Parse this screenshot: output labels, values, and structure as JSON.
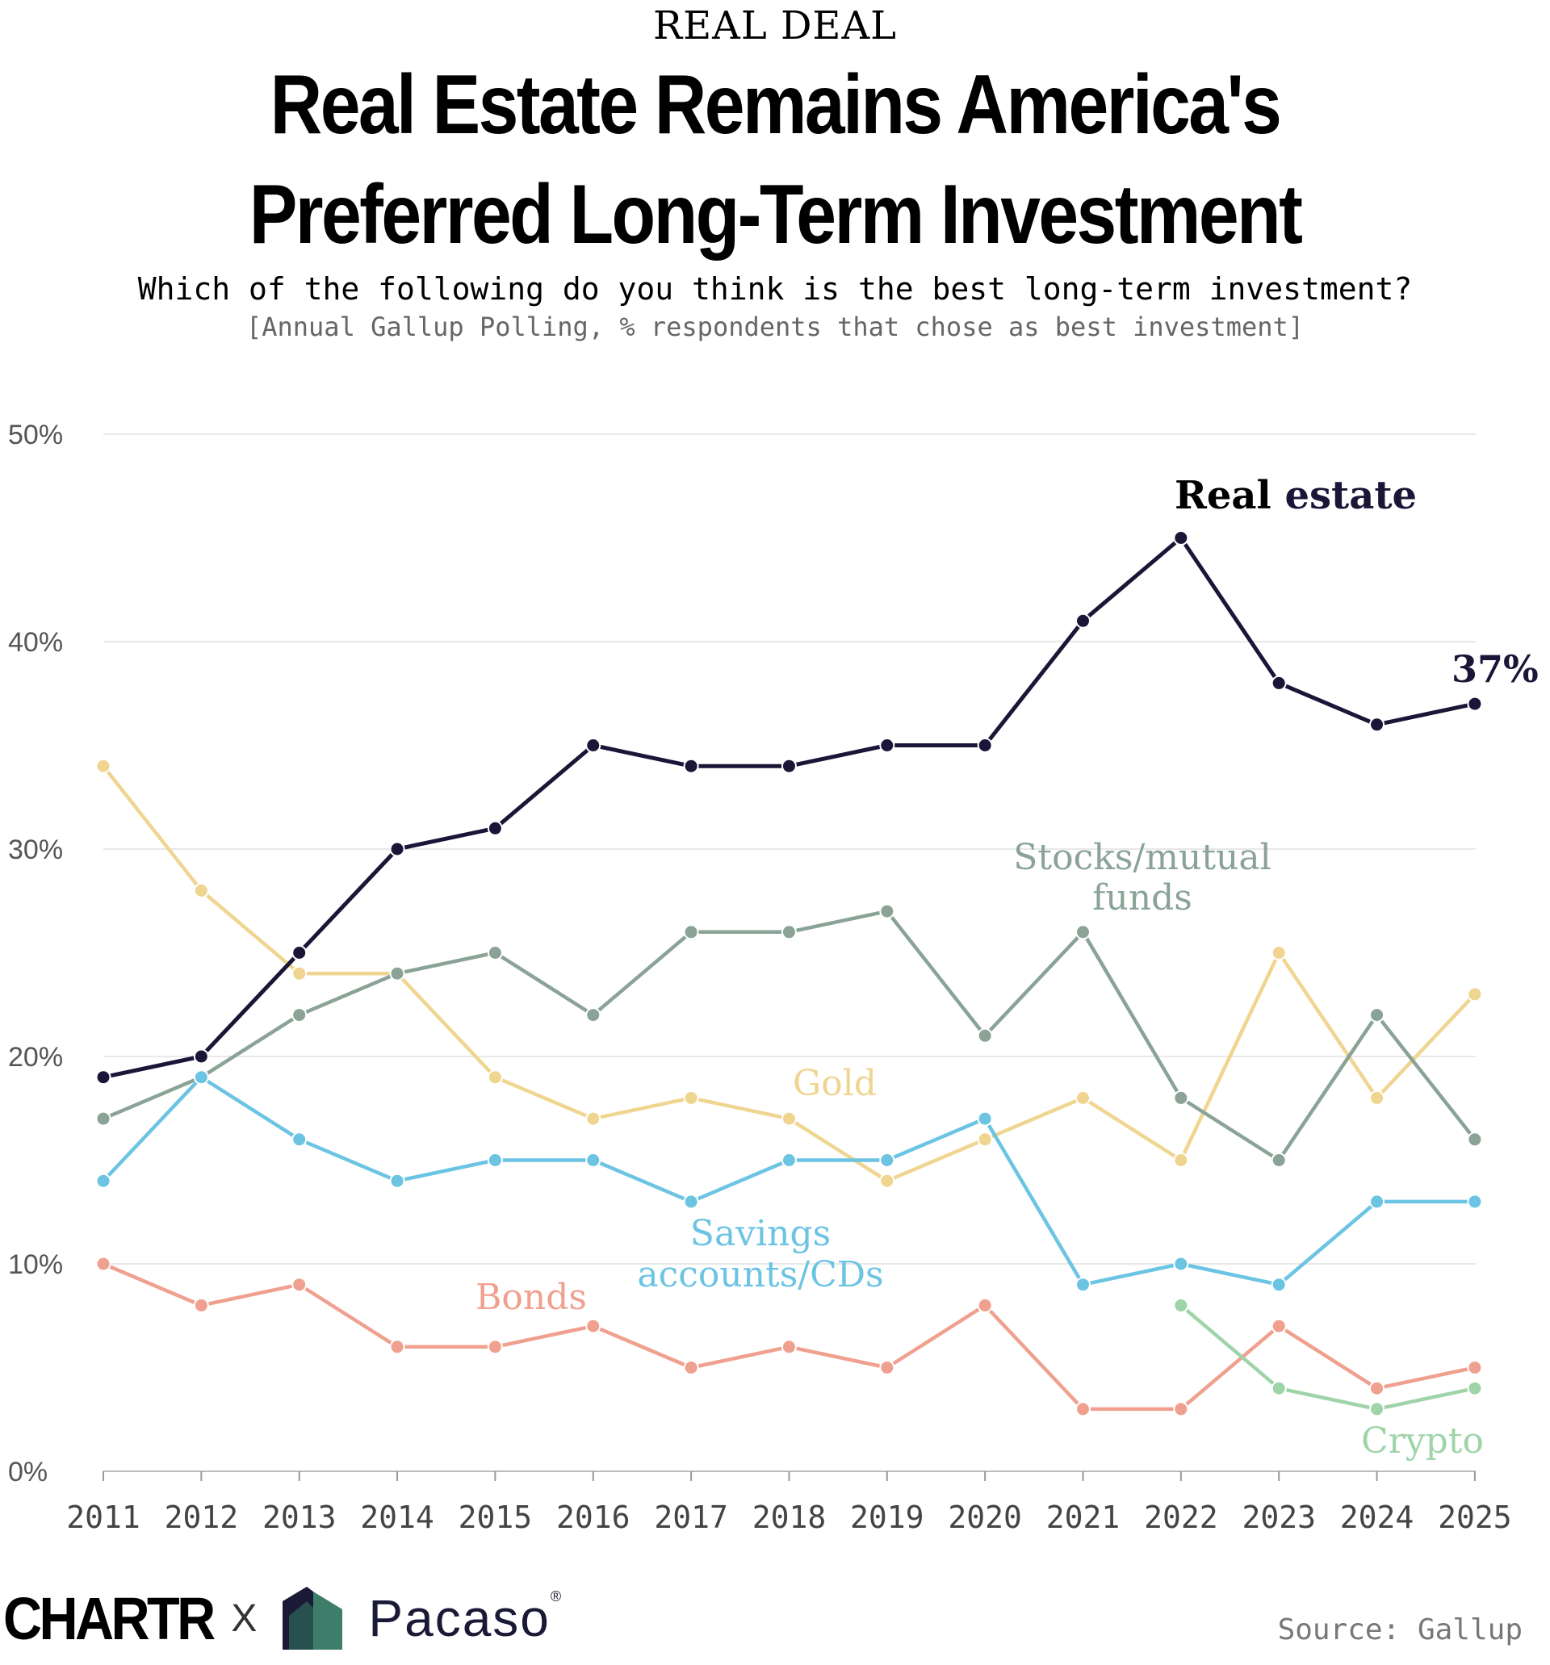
{
  "kicker": "REAL DEAL",
  "title_line1": "Real Estate Remains America's",
  "title_line2": "Preferred Long-Term Investment",
  "subtitle": "Which of the following do you think is the best long-term investment?",
  "note": "[Annual Gallup Polling, % respondents that chose as best investment]",
  "footer": {
    "brand1": "CHARTR",
    "separator": "X",
    "brand2": "Pacaso",
    "registered": "®",
    "source": "Source: Gallup"
  },
  "chart_data": {
    "type": "line",
    "x": [
      2011,
      2012,
      2013,
      2014,
      2015,
      2016,
      2017,
      2018,
      2019,
      2020,
      2021,
      2022,
      2023,
      2024,
      2025
    ],
    "ylim": [
      0,
      50
    ],
    "yticks": [
      "0%",
      "10%",
      "20%",
      "30%",
      "40%",
      "50%"
    ],
    "grid": true,
    "legend": "inline labels",
    "end_label": "37%",
    "series": [
      {
        "key": "gold",
        "name": "Gold",
        "color": "#f0d590",
        "values": [
          34,
          28,
          24,
          24,
          19,
          17,
          18,
          17,
          14,
          16,
          18,
          15,
          25,
          18,
          23
        ]
      },
      {
        "key": "stocks",
        "name": "Stocks/mutual funds",
        "label_lines": [
          "Stocks/mutual",
          "funds"
        ],
        "color": "#8aa396",
        "values": [
          17,
          19,
          22,
          24,
          25,
          22,
          26,
          26,
          27,
          21,
          26,
          18,
          15,
          22,
          16
        ]
      },
      {
        "key": "savings",
        "name": "Savings accounts/CDs",
        "label_lines": [
          "Savings",
          "accounts/CDs"
        ],
        "color": "#6cc4e3",
        "values": [
          14,
          19,
          16,
          14,
          15,
          15,
          13,
          15,
          15,
          17,
          9,
          10,
          9,
          13,
          13
        ]
      },
      {
        "key": "bonds",
        "name": "Bonds",
        "color": "#f0a08e",
        "values": [
          10,
          8,
          9,
          6,
          6,
          7,
          5,
          6,
          5,
          8,
          3,
          3,
          7,
          4,
          5
        ]
      },
      {
        "key": "crypto",
        "name": "Crypto",
        "color": "#9fd4a9",
        "values": [
          null,
          null,
          null,
          null,
          null,
          null,
          null,
          null,
          null,
          null,
          null,
          8,
          4,
          3,
          4
        ]
      },
      {
        "key": "realestate",
        "name": "Real estate",
        "label_words": [
          "Real",
          "estate"
        ],
        "color": "#1c1538",
        "values": [
          19,
          20,
          25,
          30,
          31,
          35,
          34,
          34,
          35,
          35,
          41,
          45,
          38,
          36,
          37
        ]
      }
    ]
  }
}
